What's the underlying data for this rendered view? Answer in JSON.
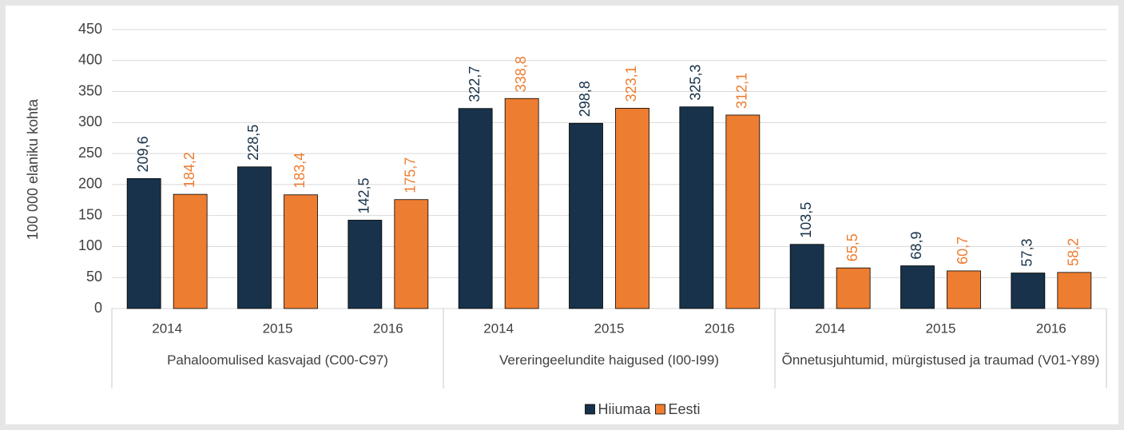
{
  "chart_data": {
    "type": "bar",
    "y_axis_label": "100 000 elaniku kohta",
    "categories": [
      "2014",
      "2015",
      "2016",
      "2014",
      "2015",
      "2016",
      "2014",
      "2015",
      "2016"
    ],
    "groups": [
      "Pahaloomulised kasvajad (C00-C97)",
      "Vereringeelundite haigused (I00-I99)",
      "Õnnetusjuhtumid, mürgistused ja traumad (V01-Y89)"
    ],
    "series": [
      {
        "name": "Hiiumaa",
        "color": "#17324a",
        "values": [
          209.6,
          228.5,
          142.5,
          322.7,
          298.8,
          325.3,
          103.5,
          68.9,
          57.3
        ],
        "value_labels": [
          "209,6",
          "228,5",
          "142,5",
          "322,7",
          "298,8",
          "325,3",
          "103,5",
          "68,9",
          "57,3"
        ]
      },
      {
        "name": "Eesti",
        "color": "#ed7d31",
        "values": [
          184.2,
          183.4,
          175.7,
          338.8,
          323.1,
          312.1,
          65.5,
          60.7,
          58.2
        ],
        "value_labels": [
          "184,2",
          "183,4",
          "175,7",
          "338,8",
          "323,1",
          "312,1",
          "65,5",
          "60,7",
          "58,2"
        ]
      }
    ],
    "ylim": [
      0,
      450
    ],
    "yticks": [
      0,
      50,
      100,
      150,
      200,
      250,
      300,
      350,
      400,
      450
    ],
    "grid": true,
    "legend": "bottom"
  }
}
